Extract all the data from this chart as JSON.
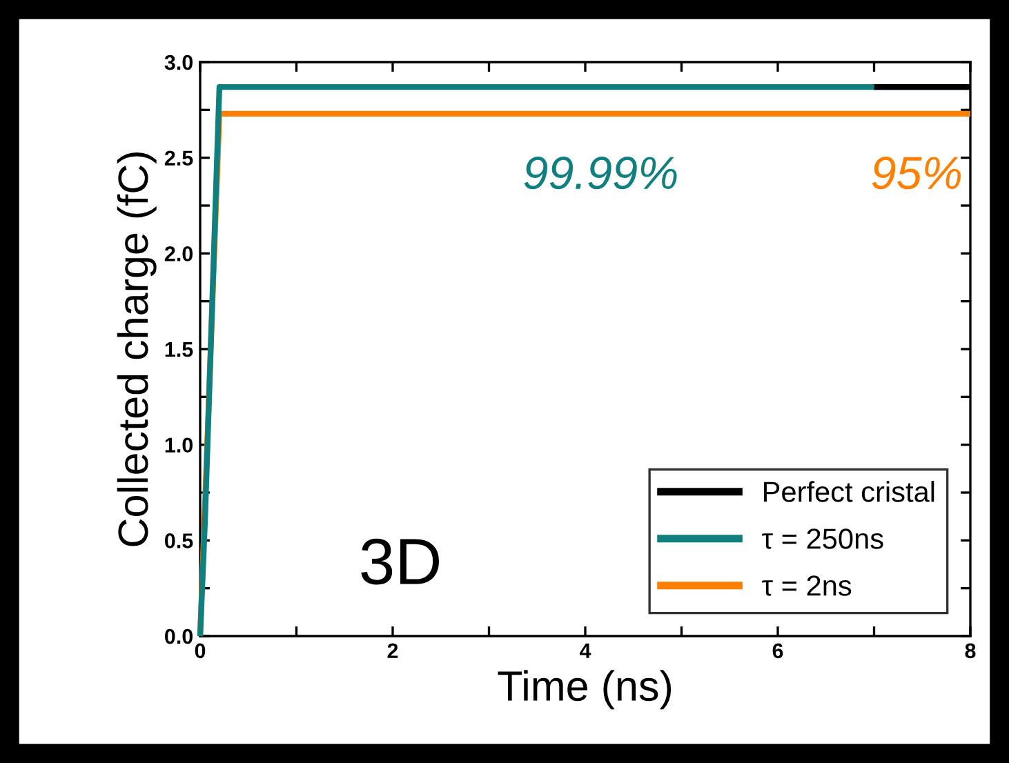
{
  "chart_data": {
    "type": "line",
    "xlabel": "Time (ns)",
    "ylabel": "Collected charge (fC)",
    "xlim": [
      0,
      8
    ],
    "ylim": [
      0,
      3.0
    ],
    "xticks": [
      0,
      {
        "value": 1,
        "label": null
      },
      2,
      {
        "value": 3,
        "label": null
      },
      4,
      {
        "value": 5,
        "label": null
      },
      6,
      {
        "value": 7,
        "label": null
      },
      8
    ],
    "yticks": [
      {
        "value": 0,
        "label": "0.0"
      },
      {
        "value": 0.25,
        "label": null
      },
      0.5,
      {
        "value": 0.75,
        "label": null
      },
      {
        "value": 1,
        "label": "1.0"
      },
      {
        "value": 1.25,
        "label": null
      },
      1.5,
      {
        "value": 1.75,
        "label": null
      },
      {
        "value": 2,
        "label": "2.0"
      },
      {
        "value": 2.25,
        "label": null
      },
      2.5,
      {
        "value": 2.75,
        "label": null
      },
      {
        "value": 3,
        "label": "3.0"
      }
    ],
    "series": [
      {
        "name": "Perfect cristal",
        "color": "#000000",
        "x": [
          7,
          8
        ],
        "values": [
          2.87,
          2.87
        ]
      },
      {
        "name": "τ = 250ns",
        "color": "#0f7f7f",
        "x": [
          0,
          0.05,
          0.2,
          8
        ],
        "values": [
          0,
          0.6,
          2.87,
          2.87
        ]
      },
      {
        "name": "τ = 2ns",
        "color": "#ff7f00",
        "x": [
          0,
          0.2,
          8
        ],
        "values": [
          0,
          2.73,
          2.73
        ]
      }
    ],
    "annotations": [
      "99.99%",
      "95%",
      "3D"
    ],
    "legend": "bottom right",
    "grid": false,
    "marker": "none",
    "line_style": "solid"
  }
}
